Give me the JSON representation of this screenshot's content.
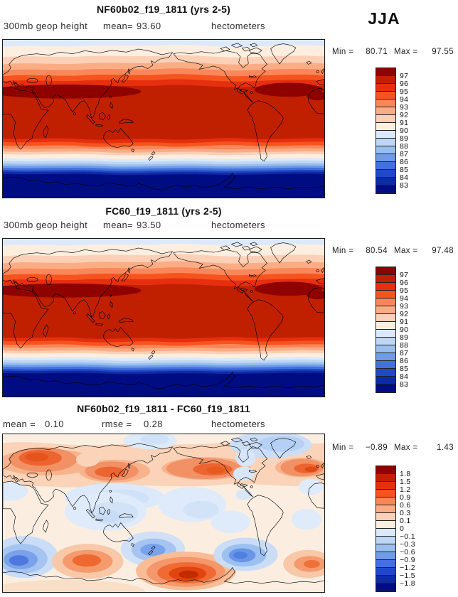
{
  "season_label": "JJA",
  "palette": [
    "#8E0300",
    "#C02000",
    "#E62F0E",
    "#F6541F",
    "#F9875A",
    "#FAAD85",
    "#FCD0B6",
    "#FDEEDF",
    "#DCE9FA",
    "#BED7F4",
    "#99BFEF",
    "#6F9BE8",
    "#4370DC",
    "#2149C7",
    "#0E2BA6",
    "#000C82"
  ],
  "panels": [
    {
      "title": "NF60b02_f19_1811 (yrs 2-5)",
      "field_label": "300mb geop height",
      "stats": [
        {
          "label": "mean=",
          "value": "93.60"
        }
      ],
      "units": "hectometers",
      "min_label": "Min =",
      "min_value": "80.71",
      "max_label": "Max =",
      "max_value": "97.55",
      "colorbar_ticks": [
        "97",
        "96",
        "95",
        "94",
        "93",
        "92",
        "91",
        "90",
        "89",
        "88",
        "87",
        "86",
        "85",
        "84",
        "83"
      ]
    },
    {
      "title": "FC60_f19_1811 (yrs 2-5)",
      "field_label": "300mb geop height",
      "stats": [
        {
          "label": "mean=",
          "value": "93.50"
        }
      ],
      "units": "hectometers",
      "min_label": "Min =",
      "min_value": "80.54",
      "max_label": "Max =",
      "max_value": "97.48",
      "colorbar_ticks": [
        "97",
        "96",
        "95",
        "94",
        "93",
        "92",
        "91",
        "90",
        "89",
        "88",
        "87",
        "86",
        "85",
        "84",
        "83"
      ]
    },
    {
      "title": "NF60b02_f19_1811 - FC60_f19_1811",
      "field_label": "",
      "stats": [
        {
          "label": "mean =",
          "value": "0.10"
        },
        {
          "label": "rmse =",
          "value": "0.28"
        }
      ],
      "units": "hectometers",
      "min_label": "Min =",
      "min_value": "−0.89",
      "max_label": "Max =",
      "max_value": "1.43",
      "colorbar_ticks": [
        "1.8",
        "1.5",
        "1.2",
        "0.9",
        "0.6",
        "0.3",
        "0.1",
        "0",
        "−0.1",
        "−0.3",
        "−0.6",
        "−0.9",
        "−1.2",
        "−1.5",
        "−1.8"
      ]
    }
  ],
  "chart_data": [
    {
      "type": "heatmap",
      "subtype": "filled_contour_world_map",
      "title": "NF60b02_f19_1811 (yrs 2-5)",
      "variable": "300mb geop height",
      "season": "JJA",
      "units": "hectometers",
      "mean": 93.6,
      "min": 80.71,
      "max": 97.55,
      "contour_levels": [
        83,
        84,
        85,
        86,
        87,
        88,
        89,
        90,
        91,
        92,
        93,
        94,
        95,
        96,
        97
      ],
      "colormap": "blue-white-red",
      "projection": "equirectangular, 0E-360E, 90N-90S",
      "pattern": "zonal bands: low (~83, dark blue) at poles/Antarctica, high (>97, dark red) in subtropics with maxima over Asia ~30N and N. America/Atlantic ~30N"
    },
    {
      "type": "heatmap",
      "subtype": "filled_contour_world_map",
      "title": "FC60_f19_1811 (yrs 2-5)",
      "variable": "300mb geop height",
      "season": "JJA",
      "units": "hectometers",
      "mean": 93.5,
      "min": 80.54,
      "max": 97.48,
      "contour_levels": [
        83,
        84,
        85,
        86,
        87,
        88,
        89,
        90,
        91,
        92,
        93,
        94,
        95,
        96,
        97
      ],
      "colormap": "blue-white-red",
      "projection": "equirectangular, 0E-360E, 90N-90S",
      "pattern": "nearly identical zonal structure to first panel"
    },
    {
      "type": "heatmap",
      "subtype": "filled_contour_difference_map",
      "title": "NF60b02_f19_1811 - FC60_f19_1811",
      "season": "JJA",
      "units": "hectometers",
      "mean": 0.1,
      "rmse": 0.28,
      "min": -0.89,
      "max": 1.43,
      "contour_levels": [
        -1.8,
        -1.5,
        -1.2,
        -0.9,
        -0.6,
        -0.3,
        -0.1,
        0,
        0.1,
        0.3,
        0.6,
        0.9,
        1.2,
        1.5,
        1.8
      ],
      "colormap": "blue-white-red",
      "pattern": "positive (orange/red) band 40-70N with cores over Scandinavia, NE Asia, NW Canada, N Atlantic; strong positive blob near Ross Sea Antarctica; negative (blue) blobs over central Asia, tropical Indian/Pacific oceans, S Atlantic, south of New Zealand, southern South America"
    }
  ]
}
